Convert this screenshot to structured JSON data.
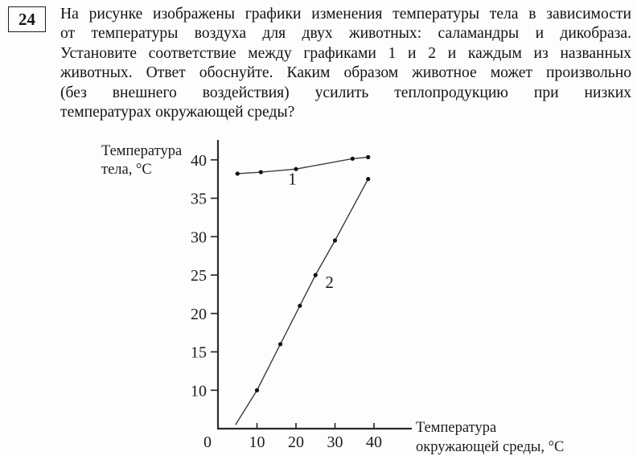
{
  "question": {
    "number": "24",
    "text_lines": [
      "На рисунке изображены графики изменения температуры тела в зависимости",
      "от температуры воздуха для двух животных: саламандры и дикобраза.",
      "Установите соответствие между графиками 1 и 2 и каждым из названных",
      "животных. Ответ обоснуйте. Каким образом животное может произвольно",
      "(без внешнего воздействия) усилить теплопродукцию при низких",
      "температурах окружающей среды?"
    ]
  },
  "chart_data": {
    "type": "line",
    "title": "",
    "ylabel": "Температура тела, °C",
    "ylabel_lines": [
      "Температура",
      "тела, °C"
    ],
    "xlabel": "Температура окружающей среды, °C",
    "xlabel_lines": [
      "Температура",
      "окружающей среды, °C"
    ],
    "x_origin_label": "0",
    "x_ticks": [
      10,
      20,
      30,
      40
    ],
    "y_ticks": [
      10,
      15,
      20,
      25,
      30,
      35,
      40
    ],
    "xlim": [
      0,
      49
    ],
    "ylim": [
      5,
      42.5
    ],
    "grid": false,
    "series": [
      {
        "name": "1",
        "label": "1",
        "label_at": [
          18,
          36.8
        ],
        "line_start": null,
        "points": [
          [
            5,
            38.2
          ],
          [
            11,
            38.4
          ],
          [
            20,
            38.8
          ],
          [
            34.5,
            40.15
          ],
          [
            38.5,
            40.35
          ]
        ]
      },
      {
        "name": "2",
        "label": "2",
        "label_at": [
          27.5,
          23.3
        ],
        "line_start": [
          4.5,
          5.5
        ],
        "points": [
          [
            10,
            10
          ],
          [
            16,
            16
          ],
          [
            21,
            21
          ],
          [
            25,
            25
          ],
          [
            30,
            29.5
          ],
          [
            38.5,
            37.5
          ]
        ]
      }
    ],
    "colors": {
      "axis": "#2b2b2b",
      "line": "#3d3d3d",
      "marker": "#111111",
      "text": "#1c1c1c"
    }
  }
}
